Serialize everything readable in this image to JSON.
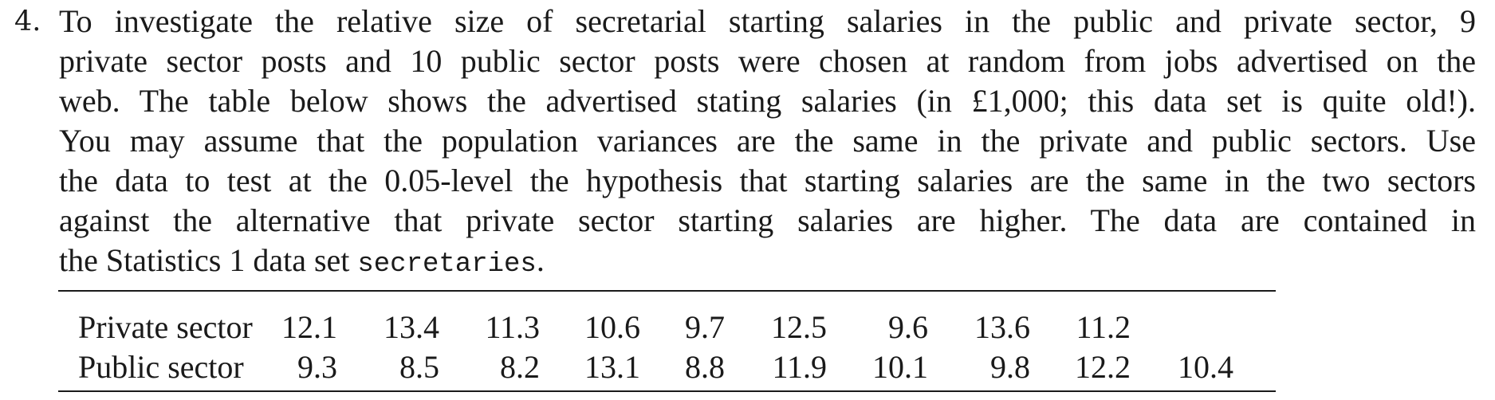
{
  "question": {
    "number": "4.",
    "lines": [
      "To investigate the relative size of secretarial starting salaries in the public and private sector, 9",
      "private sector posts and 10 public sector posts were chosen at random from jobs advertised on the",
      "web. The table below shows the advertised stating salaries (in £1,000; this data set is quite old!).",
      "You may assume that the population variances are the same in the private and public sectors. Use",
      "the data to test at the 0.05-level the hypothesis that starting salaries are the same in the two sectors",
      "against the alternative that private sector starting salaries are higher. The data are contained in"
    ],
    "last_line_prefix": "the Statistics 1 data set ",
    "dataset_name": "secretaries",
    "last_line_suffix": "."
  },
  "table": {
    "rows": [
      {
        "label": "Private sector",
        "values": [
          "12.1",
          "13.4",
          "11.3",
          "10.6",
          "9.7",
          "12.5",
          "9.6",
          "13.6",
          "11.2",
          ""
        ]
      },
      {
        "label": "Public sector",
        "values": [
          "9.3",
          "8.5",
          "8.2",
          "13.1",
          "8.8",
          "11.9",
          "10.1",
          "9.8",
          "12.2",
          "10.4"
        ]
      }
    ]
  }
}
